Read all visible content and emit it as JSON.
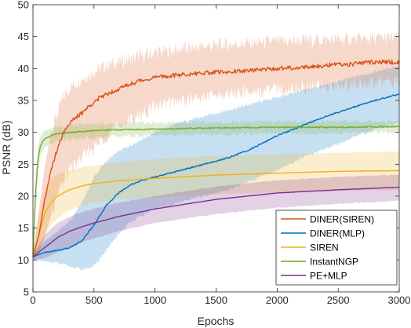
{
  "chart_data": {
    "type": "line",
    "xlabel": "Epochs",
    "ylabel": "PSNR (dB)",
    "xlim": [
      0,
      3000
    ],
    "ylim": [
      5,
      50
    ],
    "xticks": [
      0,
      500,
      1000,
      1500,
      2000,
      2500,
      3000
    ],
    "yticks": [
      5,
      10,
      15,
      20,
      25,
      30,
      35,
      40,
      45,
      50
    ],
    "grid": false,
    "legend_position": "bottom-right",
    "series": [
      {
        "name": "DINER(SIREN)",
        "color": "#D95319",
        "x": [
          0,
          50,
          100,
          150,
          200,
          250,
          300,
          400,
          500,
          600,
          700,
          800,
          900,
          1000,
          1200,
          1400,
          1600,
          1800,
          2000,
          2200,
          2400,
          2600,
          2800,
          3000
        ],
        "mean": [
          10.5,
          14,
          20,
          24,
          27.5,
          30,
          31.5,
          33,
          34.8,
          36,
          36.8,
          37.6,
          38.2,
          38.6,
          39,
          39.3,
          39.5,
          39.7,
          40,
          40.2,
          40.5,
          40.7,
          41,
          41
        ],
        "upper": [
          11,
          18,
          25,
          30,
          33,
          35.5,
          37,
          38.5,
          39.5,
          40.5,
          41,
          41.5,
          42,
          42.5,
          43,
          43.5,
          43.8,
          44,
          44.2,
          44.4,
          44.5,
          44.6,
          44.7,
          44.8
        ],
        "lower": [
          10,
          11,
          14,
          17,
          20,
          22.5,
          24,
          26,
          27.5,
          29.5,
          31,
          32,
          33,
          34,
          35,
          35.5,
          36,
          36.3,
          36.8,
          37,
          37.3,
          37.6,
          37.8,
          38
        ]
      },
      {
        "name": "DINER(MLP)",
        "color": "#0072BD",
        "x": [
          0,
          100,
          200,
          300,
          400,
          500,
          600,
          700,
          800,
          900,
          1000,
          1200,
          1400,
          1600,
          1800,
          2000,
          2200,
          2400,
          2600,
          2800,
          3000
        ],
        "mean": [
          10.5,
          11.2,
          11.5,
          11.9,
          13,
          15.5,
          18.5,
          20.5,
          21.8,
          22.5,
          23,
          24,
          25,
          26,
          27.5,
          29.5,
          31,
          32.5,
          33.8,
          35,
          36
        ],
        "upper": [
          11,
          13,
          14.5,
          16,
          19,
          23,
          25.5,
          27,
          28,
          29,
          30,
          31.5,
          32.5,
          33.5,
          34.5,
          35.5,
          36.5,
          37.5,
          38.5,
          39.5,
          40.5
        ],
        "lower": [
          10,
          9.8,
          9.5,
          9,
          8.5,
          9,
          11.5,
          14,
          16,
          17,
          18,
          19,
          20,
          21,
          22.5,
          24,
          26,
          27.5,
          29,
          30.5,
          31.5
        ]
      },
      {
        "name": "SIREN",
        "color": "#EDB120",
        "x": [
          0,
          50,
          100,
          150,
          200,
          300,
          400,
          500,
          700,
          1000,
          1500,
          2000,
          2500,
          3000
        ],
        "mean": [
          10.5,
          14,
          17.5,
          19,
          20,
          21,
          21.6,
          22,
          22.4,
          22.8,
          23.3,
          23.6,
          23.9,
          24
        ],
        "upper": [
          11,
          17,
          21,
          22.5,
          23.5,
          24,
          24.5,
          24.8,
          25.3,
          25.8,
          26.3,
          26.6,
          26.8,
          27
        ],
        "lower": [
          10,
          11.5,
          14,
          15.5,
          16.5,
          17.8,
          18.5,
          19,
          19.5,
          19.8,
          20.3,
          20.6,
          20.8,
          21
        ]
      },
      {
        "name": "InstantNGP",
        "color": "#77AC30",
        "x": [
          0,
          20,
          40,
          60,
          80,
          100,
          150,
          200,
          300,
          400,
          500,
          700,
          1000,
          1500,
          2000,
          2500,
          3000
        ],
        "mean": [
          10.5,
          20,
          25.5,
          27.8,
          28.6,
          29,
          29.5,
          29.8,
          30,
          30.1,
          30.3,
          30.4,
          30.5,
          30.7,
          30.8,
          30.8,
          30.9
        ],
        "upper": [
          11,
          23,
          27.5,
          29.3,
          30,
          30.3,
          30.6,
          30.9,
          31.1,
          31.2,
          31.3,
          31.4,
          31.5,
          31.6,
          31.7,
          31.7,
          31.8
        ],
        "lower": [
          10,
          17,
          23.5,
          26.3,
          27.2,
          27.7,
          28.3,
          28.7,
          28.9,
          29,
          29.2,
          29.3,
          29.5,
          29.7,
          29.8,
          29.9,
          30
        ]
      },
      {
        "name": "PE+MLP",
        "color": "#7E2F8E",
        "x": [
          0,
          100,
          200,
          300,
          400,
          500,
          700,
          1000,
          1500,
          2000,
          2500,
          3000
        ],
        "mean": [
          10.5,
          12,
          13.5,
          14.5,
          15.2,
          15.8,
          16.8,
          18,
          19.5,
          20.5,
          21,
          21.4
        ],
        "upper": [
          11,
          14,
          15.8,
          16.8,
          17.5,
          18,
          19,
          20,
          21.5,
          22.5,
          23,
          23.4
        ],
        "lower": [
          10,
          10.3,
          11.2,
          12,
          12.8,
          13.4,
          14.5,
          15.8,
          17.2,
          18.2,
          18.8,
          19.3
        ]
      }
    ]
  }
}
